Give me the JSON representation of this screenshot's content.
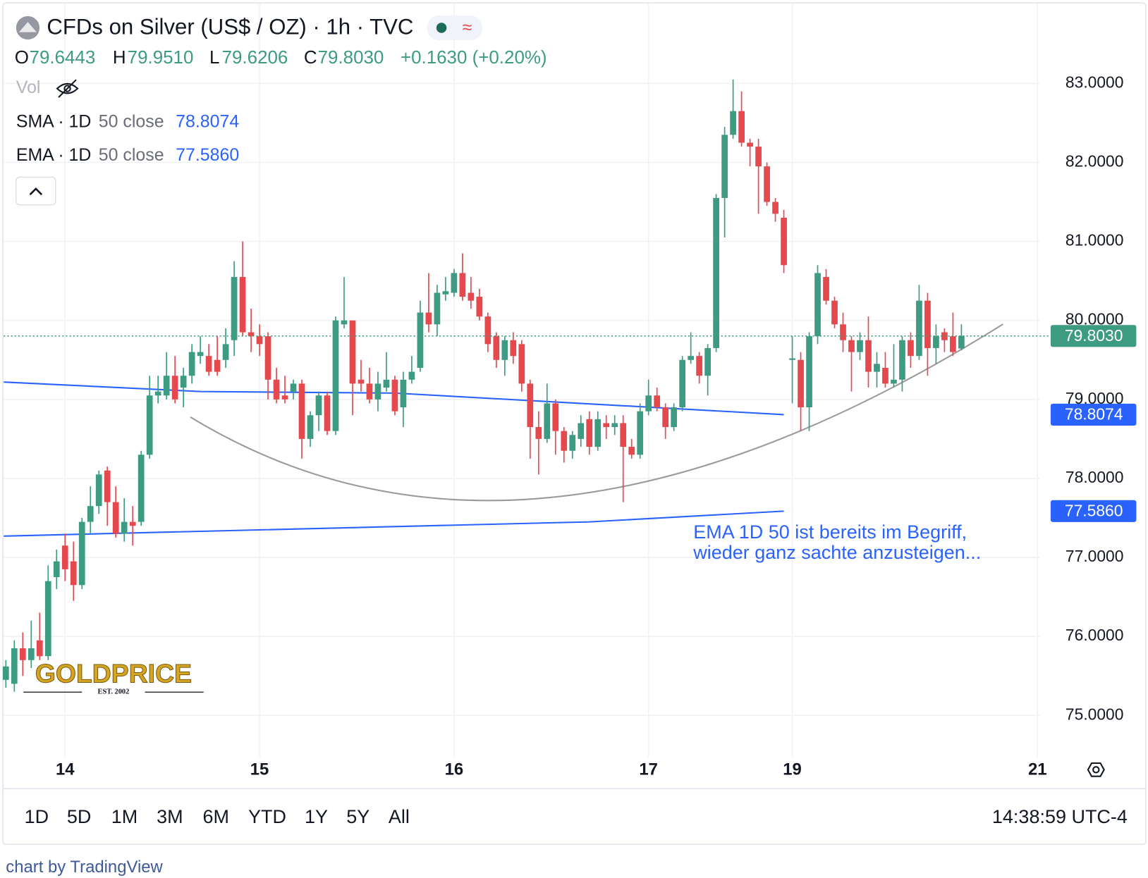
{
  "header": {
    "title": "CFDs on Silver (US$ / OZ) · 1h · TVC",
    "ohlc": [
      {
        "key": "O",
        "value": "79.6443"
      },
      {
        "key": "H",
        "value": "79.9510"
      },
      {
        "key": "L",
        "value": "79.6206"
      },
      {
        "key": "C",
        "value": "79.8030"
      }
    ],
    "change": "+0.1630 (+0.20%)",
    "vol": "Vol"
  },
  "chart_data": {
    "type": "candlestick",
    "categories": [
      null,
      null,
      null,
      null,
      null,
      null,
      null,
      "14",
      null,
      null,
      null,
      null,
      null,
      null,
      null,
      null,
      null,
      null,
      null,
      null,
      null,
      null,
      null,
      null,
      null,
      null,
      null,
      null,
      null,
      null,
      "15",
      null,
      null,
      null,
      null,
      null,
      null,
      null,
      null,
      null,
      null,
      null,
      null,
      null,
      null,
      null,
      null,
      null,
      null,
      null,
      null,
      null,
      null,
      "16",
      null,
      null,
      null,
      null,
      null,
      null,
      null,
      null,
      null,
      null,
      null,
      null,
      null,
      null,
      null,
      null,
      null,
      null,
      null,
      null,
      null,
      null,
      "17",
      null,
      null,
      null,
      null,
      null,
      null,
      null,
      null,
      null,
      null,
      null,
      null,
      null,
      null,
      null,
      null,
      "19",
      null,
      null,
      null,
      null,
      null,
      null,
      null,
      null,
      null,
      null,
      null,
      null,
      null,
      null,
      null,
      null,
      null,
      null,
      null,
      null,
      null,
      null,
      null,
      null,
      null,
      null,
      null,
      null,
      "21"
    ],
    "open": [
      75.45,
      75.4,
      75.85,
      75.7,
      75.95,
      75.75,
      76.75,
      77.15,
      76.95,
      76.65,
      77.45,
      77.65,
      78.1,
      77.7,
      77.3,
      77.45,
      77.45,
      78.3,
      79.05,
      79.05,
      79.3,
      79.15,
      79.3,
      79.55,
      79.55,
      79.5,
      79.5,
      79.75,
      80.55,
      79.85,
      79.8,
      79.8,
      79.25,
      79.05,
      79.1,
      79.2,
      78.5,
      78.8,
      79.05,
      78.6,
      79.95,
      80.0,
      79.25,
      79.2,
      79.0,
      79.15,
      79.25,
      78.9,
      79.25,
      79.4,
      80.1,
      79.95,
      80.33,
      80.35,
      80.6,
      80.35,
      80.3,
      80.05,
      79.8,
      79.5,
      79.75,
      79.7,
      79.2,
      78.65,
      78.5,
      78.95,
      78.6,
      78.35,
      78.5,
      78.75,
      78.4,
      78.7,
      78.65,
      78.7,
      78.4,
      78.3,
      78.85,
      79.05,
      78.9,
      78.65,
      78.9,
      79.5,
      79.55,
      79.3,
      79.65,
      81.55,
      82.35,
      82.65,
      82.25,
      82.2,
      81.95,
      81.5,
      81.3,
      79.5,
      79.5,
      78.9,
      79.8,
      80.55,
      80.25,
      79.95,
      79.75,
      79.6,
      79.75,
      79.35,
      79.4,
      79.2,
      79.25,
      79.75,
      79.55,
      80.25,
      79.65,
      79.85,
      79.8,
      79.6443,
      null,
      null,
      null,
      null,
      null,
      null,
      null,
      null,
      null
    ],
    "high": [
      75.7,
      75.95,
      76.05,
      76.2,
      76.3,
      76.9,
      77.1,
      77.3,
      77.2,
      77.5,
      77.9,
      78.1,
      78.15,
      77.9,
      77.75,
      77.65,
      78.35,
      79.3,
      79.3,
      79.6,
      79.55,
      79.4,
      79.7,
      79.8,
      79.7,
      79.8,
      79.9,
      80.75,
      81.0,
      80.15,
      79.95,
      79.85,
      79.4,
      79.3,
      79.25,
      79.25,
      78.85,
      79.1,
      79.1,
      80.05,
      80.55,
      80.0,
      79.5,
      79.4,
      79.35,
      79.6,
      79.3,
      79.35,
      79.55,
      80.25,
      80.6,
      80.45,
      80.55,
      80.65,
      80.85,
      80.55,
      80.4,
      80.1,
      79.85,
      79.8,
      79.85,
      79.75,
      79.25,
      78.85,
      79.2,
      79.0,
      78.65,
      78.6,
      78.8,
      78.85,
      78.85,
      78.8,
      78.8,
      78.8,
      78.5,
      78.95,
      79.25,
      79.15,
      78.95,
      78.95,
      79.55,
      79.85,
      79.6,
      79.7,
      81.6,
      82.45,
      83.05,
      82.9,
      82.3,
      82.3,
      82.0,
      81.55,
      81.4,
      79.8,
      79.6,
      79.85,
      80.7,
      80.65,
      80.3,
      80.1,
      79.8,
      79.85,
      80.05,
      79.6,
      79.6,
      79.7,
      79.8,
      79.85,
      80.45,
      80.35,
      79.95,
      79.9,
      80.1,
      79.951,
      null,
      null,
      null,
      null,
      null,
      null,
      null,
      null,
      null
    ],
    "low": [
      75.35,
      75.3,
      75.5,
      75.6,
      75.7,
      75.7,
      76.6,
      76.7,
      76.45,
      76.6,
      77.3,
      77.55,
      77.4,
      77.25,
      77.2,
      77.15,
      77.4,
      78.25,
      78.95,
      79.0,
      78.95,
      78.9,
      79.2,
      79.45,
      79.3,
      79.3,
      79.4,
      79.55,
      79.8,
      79.6,
      79.55,
      79.0,
      78.95,
      78.95,
      79.0,
      78.25,
      78.4,
      78.6,
      78.55,
      78.55,
      79.9,
      78.8,
      79.1,
      78.95,
      78.85,
      79.1,
      78.8,
      78.65,
      79.2,
      79.35,
      79.85,
      79.8,
      80.25,
      80.3,
      80.25,
      80.15,
      80.0,
      79.6,
      79.4,
      79.3,
      79.45,
      79.1,
      78.25,
      78.05,
      78.45,
      78.3,
      78.2,
      78.25,
      78.4,
      78.3,
      78.35,
      78.5,
      78.55,
      77.7,
      78.25,
      78.25,
      78.8,
      78.85,
      78.5,
      78.6,
      78.85,
      79.45,
      79.2,
      79.05,
      79.6,
      81.05,
      82.3,
      82.2,
      81.95,
      81.35,
      81.45,
      81.25,
      80.6,
      78.95,
      78.6,
      78.6,
      79.7,
      80.2,
      79.9,
      79.6,
      79.1,
      79.5,
      79.15,
      79.15,
      79.15,
      79.15,
      79.1,
      79.4,
      79.5,
      79.3,
      79.45,
      79.6,
      79.55,
      79.6206,
      null,
      null,
      null,
      null,
      null,
      null,
      null,
      null,
      null
    ],
    "close": [
      75.62,
      75.85,
      75.7,
      75.85,
      75.75,
      76.7,
      76.95,
      76.85,
      76.65,
      77.45,
      77.65,
      78.05,
      77.7,
      77.3,
      77.45,
      77.4,
      78.3,
      79.05,
      79.1,
      79.3,
      79.0,
      79.3,
      79.6,
      79.6,
      79.35,
      79.35,
      79.7,
      80.55,
      79.85,
      79.8,
      79.7,
      79.25,
      79.0,
      79.0,
      79.2,
      78.5,
      78.8,
      79.05,
      78.6,
      80.0,
      80.0,
      79.2,
      79.2,
      79.0,
      79.2,
      79.25,
      78.85,
      79.25,
      79.35,
      80.1,
      79.95,
      80.35,
      80.37,
      80.6,
      80.3,
      80.25,
      80.05,
      79.7,
      79.5,
      79.75,
      79.55,
      79.2,
      78.65,
      78.5,
      78.95,
      78.6,
      78.35,
      78.55,
      78.7,
      78.4,
      78.75,
      78.65,
      78.7,
      78.4,
      78.3,
      78.85,
      79.05,
      78.9,
      78.65,
      78.9,
      79.5,
      79.55,
      79.3,
      79.65,
      81.55,
      82.35,
      82.65,
      82.25,
      82.2,
      81.95,
      81.5,
      81.35,
      80.7,
      79.52,
      78.9,
      79.8,
      80.6,
      80.25,
      79.95,
      79.75,
      79.6,
      79.75,
      79.35,
      79.45,
      79.2,
      79.25,
      79.75,
      79.55,
      80.25,
      79.65,
      79.8,
      79.75,
      79.6,
      79.803,
      null,
      null,
      null,
      null,
      null,
      null,
      null,
      null,
      null
    ],
    "up_color": "#3d9b82",
    "down_color": "#e5484d",
    "ylim": [
      74.47,
      84.01
    ],
    "yticks": [
      {
        "value": 75,
        "label": "75.0000"
      },
      {
        "value": 76,
        "label": "76.0000"
      },
      {
        "value": 77,
        "label": "77.0000"
      },
      {
        "value": 78,
        "label": "78.0000"
      },
      {
        "value": 79,
        "label": "79.0000"
      },
      {
        "value": 80,
        "label": "80.0000"
      },
      {
        "value": 81,
        "label": "81.0000"
      },
      {
        "value": 82,
        "label": "82.0000"
      },
      {
        "value": 83,
        "label": "83.0000"
      }
    ],
    "grid": true,
    "last_price": {
      "value": 79.803,
      "label": "79.8030"
    },
    "indicators": [
      {
        "name": "SMA · 1D",
        "params": "50 close",
        "color": "#2962ff",
        "last_label": "78.8074",
        "x": [
          -0.25,
          23,
          46,
          92
        ],
        "values": [
          79.22,
          79.1,
          79.08,
          78.8074
        ]
      },
      {
        "name": "EMA · 1D",
        "params": "50 close",
        "color": "#2962ff",
        "last_label": "77.5860",
        "x": [
          -0.25,
          69,
          92
        ],
        "values": [
          77.27,
          77.45,
          77.586
        ]
      }
    ],
    "annotation": {
      "lines": [
        "EMA 1D 50 ist bereits im Begriff,",
        "wieder ganz sachte anzusteigen..."
      ],
      "color": "#2962ff"
    }
  },
  "toolbar": {
    "ranges": [
      "1D",
      "5D",
      "1M",
      "3M",
      "6M",
      "YTD",
      "1Y",
      "5Y",
      "All"
    ],
    "time": "14:38:59 UTC-4"
  },
  "logo": {
    "name": "GOLDPRICE",
    "est": "EST. 2002"
  },
  "footer": "chart by TradingView"
}
